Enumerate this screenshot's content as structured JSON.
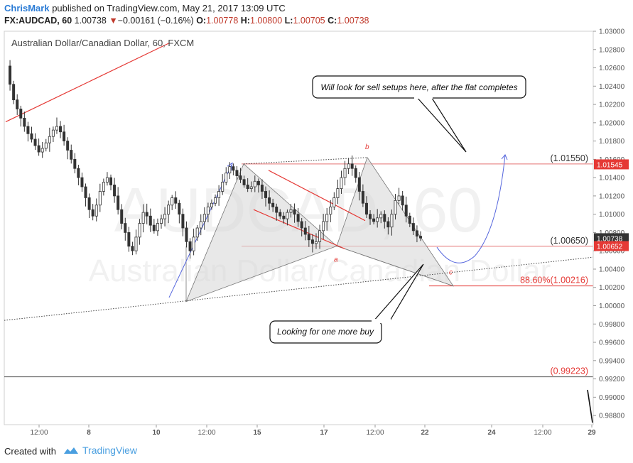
{
  "header": {
    "author": "ChrisMark",
    "published": "published on TradingView.com, May 21, 2017 13:09 UTC",
    "symbol": "FX:AUDCAD, 60",
    "last": "1.00738",
    "arrow": "▼",
    "change": "−0.00161 (−0.16%)",
    "o_label": "O:",
    "o_val": "1.00778",
    "h_label": "H:",
    "h_val": "1.00800",
    "l_label": "L:",
    "l_val": "1.00705",
    "c_label": "C:",
    "c_val": "1.00738"
  },
  "footer": {
    "created": "Created with",
    "brand": "TradingView"
  },
  "chart_data": {
    "type": "candlestick",
    "title": "Australian Dollar/Canadian Dollar, 60, FXCM",
    "watermark_symbol": "AUDCAD, 60",
    "watermark_name": "Australian Dollar/Canadian Dollar",
    "ylim": [
      0.987,
      1.03
    ],
    "y_ticks": [
      "1.03000",
      "1.02800",
      "1.02600",
      "1.02400",
      "1.02200",
      "1.02000",
      "1.01800",
      "1.01600",
      "1.01400",
      "1.01200",
      "1.01000",
      "1.00800",
      "1.00600",
      "1.00400",
      "1.00200",
      "1.00000",
      "0.99800",
      "0.99600",
      "0.99400",
      "0.99200",
      "0.99000",
      "0.98800"
    ],
    "x_ticks": [
      "12:00",
      "8",
      "10",
      "12:00",
      "15",
      "17",
      "12:00",
      "22",
      "24",
      "12:00",
      "29"
    ],
    "price_tags": [
      {
        "value": 1.01545,
        "label": "1.01545",
        "color": "#e53935"
      },
      {
        "value": 1.00738,
        "label": "1.00738",
        "color": "#333333"
      },
      {
        "value": 1.00652,
        "label": "1.00652",
        "color": "#e53935"
      }
    ],
    "levels": [
      {
        "value": 1.0155,
        "label": "(1.01550)",
        "color": "#e57373"
      },
      {
        "value": 1.0065,
        "label": "(1.00650)",
        "color": "#e57373"
      },
      {
        "value": 1.00216,
        "label": "88.60%(1.00216)",
        "color": "#e53935"
      },
      {
        "value": 0.99223,
        "label": "(0.99223)",
        "color": "#555555"
      }
    ],
    "wave_labels": [
      "a",
      "b",
      "c"
    ],
    "callouts": [
      "Will look for sell setups here, after the flat completes",
      "Looking for one more buy"
    ],
    "price_path": [
      1.0262,
      1.0242,
      1.0225,
      1.0215,
      1.0205,
      1.0196,
      1.0188,
      1.0182,
      1.0175,
      1.0168,
      1.0172,
      1.0178,
      1.0185,
      1.0192,
      1.0196,
      1.019,
      1.018,
      1.017,
      1.016,
      1.015,
      1.014,
      1.013,
      1.0118,
      1.0105,
      1.0098,
      1.011,
      1.0125,
      1.0135,
      1.014,
      1.0132,
      1.012,
      1.0105,
      1.009,
      1.008,
      1.0065,
      1.006,
      1.0075,
      1.009,
      1.0102,
      1.0098,
      1.0088,
      1.0082,
      1.009,
      1.0095,
      1.01,
      1.011,
      1.0118,
      1.0112,
      1.01,
      1.0085,
      1.007,
      1.006,
      1.0075,
      1.0085,
      1.0092,
      1.01,
      1.0108,
      1.0112,
      1.0118,
      1.0125,
      1.0135,
      1.0145,
      1.0152,
      1.0148,
      1.0142,
      1.0138,
      1.0132,
      1.0128,
      1.013,
      1.0136,
      1.0132,
      1.0125,
      1.0118,
      1.0112,
      1.0108,
      1.0102,
      1.0098,
      1.0095,
      1.0102,
      1.0105,
      1.01,
      1.0092,
      1.0085,
      1.0078,
      1.0072,
      1.0068,
      1.007,
      1.0082,
      1.0092,
      1.01,
      1.0108,
      1.0118,
      1.0128,
      1.014,
      1.015,
      1.0155,
      1.015,
      1.014,
      1.0125,
      1.0112,
      1.01,
      1.0095,
      1.0092,
      1.0096,
      1.01,
      1.0092,
      1.0086,
      1.01,
      1.0115,
      1.012,
      1.011,
      1.0098,
      1.009,
      1.0082,
      1.0076,
      1.0074
    ]
  }
}
